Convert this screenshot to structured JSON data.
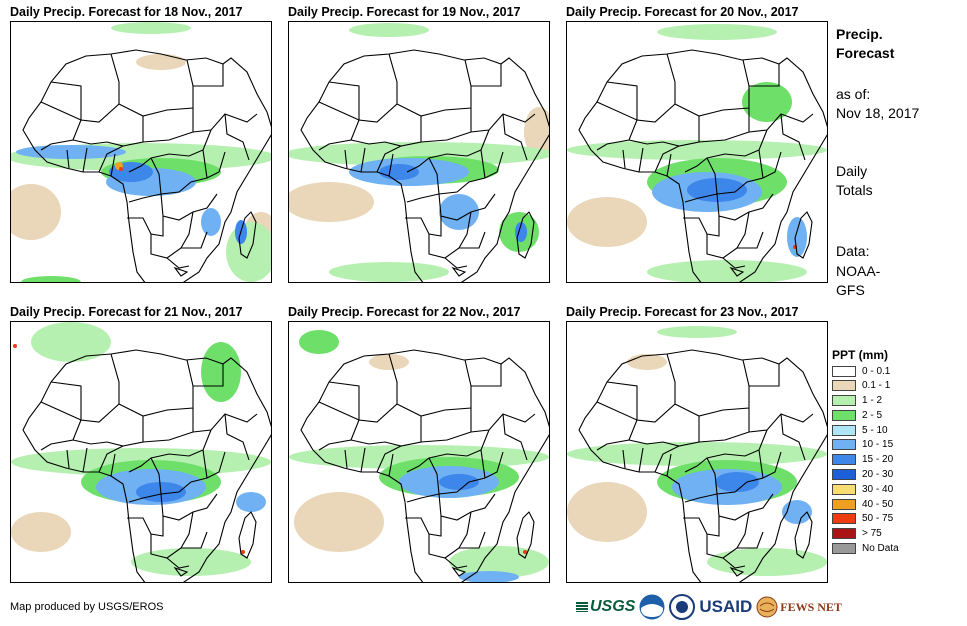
{
  "panels": [
    {
      "title": "Daily Precip. Forecast for 18 Nov., 2017"
    },
    {
      "title": "Daily Precip. Forecast for 19 Nov., 2017"
    },
    {
      "title": "Daily Precip. Forecast for 20 Nov., 2017"
    },
    {
      "title": "Daily Precip. Forecast for 21 Nov., 2017"
    },
    {
      "title": "Daily Precip. Forecast for 22 Nov., 2017"
    },
    {
      "title": "Daily Precip. Forecast for 23 Nov., 2017"
    }
  ],
  "sidebar": {
    "heading_line1": "Precip.",
    "heading_line2": "Forecast",
    "asof_label": "as of:",
    "asof_date": "Nov 18, 2017",
    "totals_line1": "Daily",
    "totals_line2": "Totals",
    "data_label": "Data:",
    "data_source_line1": "NOAA-",
    "data_source_line2": "GFS"
  },
  "legend": {
    "title": "PPT (mm)",
    "items": [
      {
        "label": "0 - 0.1",
        "color": "#ffffff"
      },
      {
        "label": "0.1 - 1",
        "color": "#ead6b8"
      },
      {
        "label": "1 - 2",
        "color": "#b6f0b0"
      },
      {
        "label": "2 - 5",
        "color": "#6ee06a"
      },
      {
        "label": "5 - 10",
        "color": "#aee6f5"
      },
      {
        "label": "10 - 15",
        "color": "#6fb1f2"
      },
      {
        "label": "15 - 20",
        "color": "#3d86ea"
      },
      {
        "label": "20 - 30",
        "color": "#1c5fd9"
      },
      {
        "label": "30 - 40",
        "color": "#f7dd72"
      },
      {
        "label": "40 - 50",
        "color": "#f0a020"
      },
      {
        "label": "50 - 75",
        "color": "#ec3c10"
      },
      {
        "label": "> 75",
        "color": "#aa1414"
      },
      {
        "label": "No Data",
        "color": "#999999"
      }
    ]
  },
  "footer": {
    "credit": "Map produced by USGS/EROS"
  },
  "logos": {
    "usgs": "USGS",
    "usaid": "USAID",
    "fewsnet": "FEWS NET"
  }
}
